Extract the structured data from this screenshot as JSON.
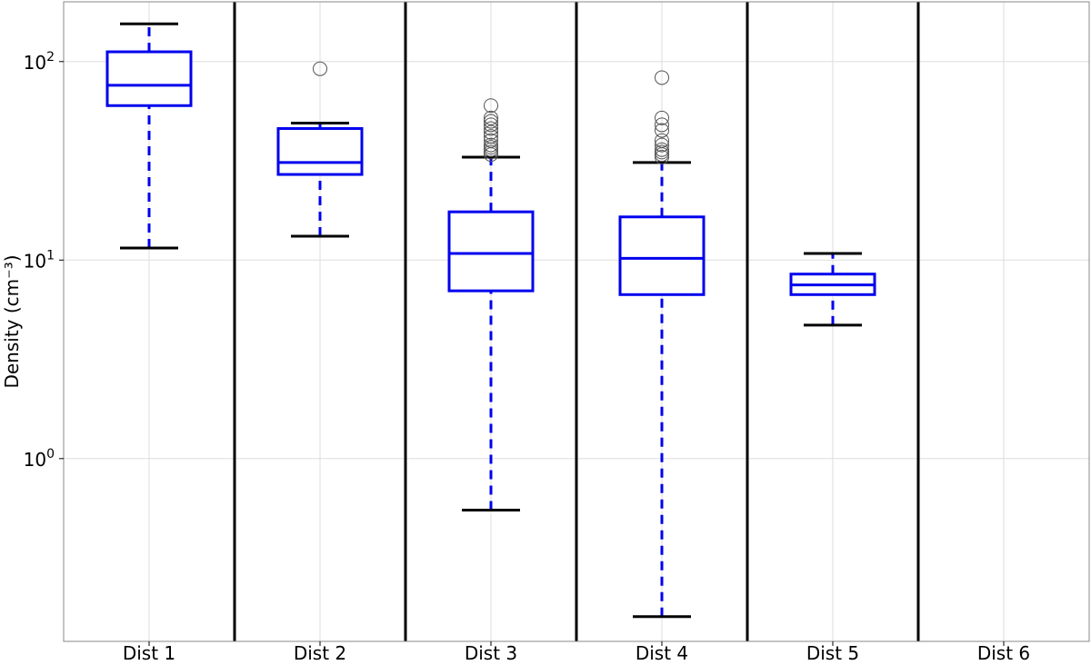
{
  "chart_data": {
    "type": "box",
    "ylabel": "Density (cm⁻³)",
    "yscale": "log",
    "ylim": [
      0.12,
      200
    ],
    "ytick_values": [
      1,
      10,
      100
    ],
    "ytick_exponents": [
      "0",
      "1",
      "2"
    ],
    "ytick_base": "10",
    "grid": true,
    "categories": [
      "Dist 1",
      "Dist 2",
      "Dist 3",
      "Dist 4",
      "Dist 5",
      "Dist 6"
    ],
    "boxes": [
      {
        "name": "Dist 1",
        "whisker_low": 11.5,
        "q1": 60,
        "median": 76,
        "q3": 112,
        "whisker_high": 155,
        "outliers": []
      },
      {
        "name": "Dist 2",
        "whisker_low": 13.2,
        "q1": 27,
        "median": 31,
        "q3": 46,
        "whisker_high": 49,
        "outliers": [
          92
        ]
      },
      {
        "name": "Dist 3",
        "whisker_low": 0.55,
        "q1": 7.0,
        "median": 10.8,
        "q3": 17.5,
        "whisker_high": 33,
        "outliers": [
          34,
          35,
          36,
          37,
          38,
          40,
          42,
          44,
          46,
          48,
          50,
          52,
          60
        ]
      },
      {
        "name": "Dist 4",
        "whisker_low": 0.16,
        "q1": 6.7,
        "median": 10.2,
        "q3": 16.5,
        "whisker_high": 31,
        "outliers": [
          33,
          34,
          35,
          36,
          38,
          40,
          45,
          48,
          52,
          83
        ]
      },
      {
        "name": "Dist 5",
        "whisker_low": 4.7,
        "q1": 6.7,
        "median": 7.5,
        "q3": 8.5,
        "whisker_high": 10.8,
        "outliers": []
      },
      {
        "name": "Dist 6",
        "whisker_low": null,
        "q1": null,
        "median": null,
        "q3": null,
        "whisker_high": null,
        "outliers": []
      }
    ],
    "colors": {
      "box": "#0000ee",
      "whisker_line": "#0000ee",
      "cap": "#000000",
      "outlier": "#555555",
      "separator": "#000000",
      "grid": "#dddddd"
    }
  }
}
